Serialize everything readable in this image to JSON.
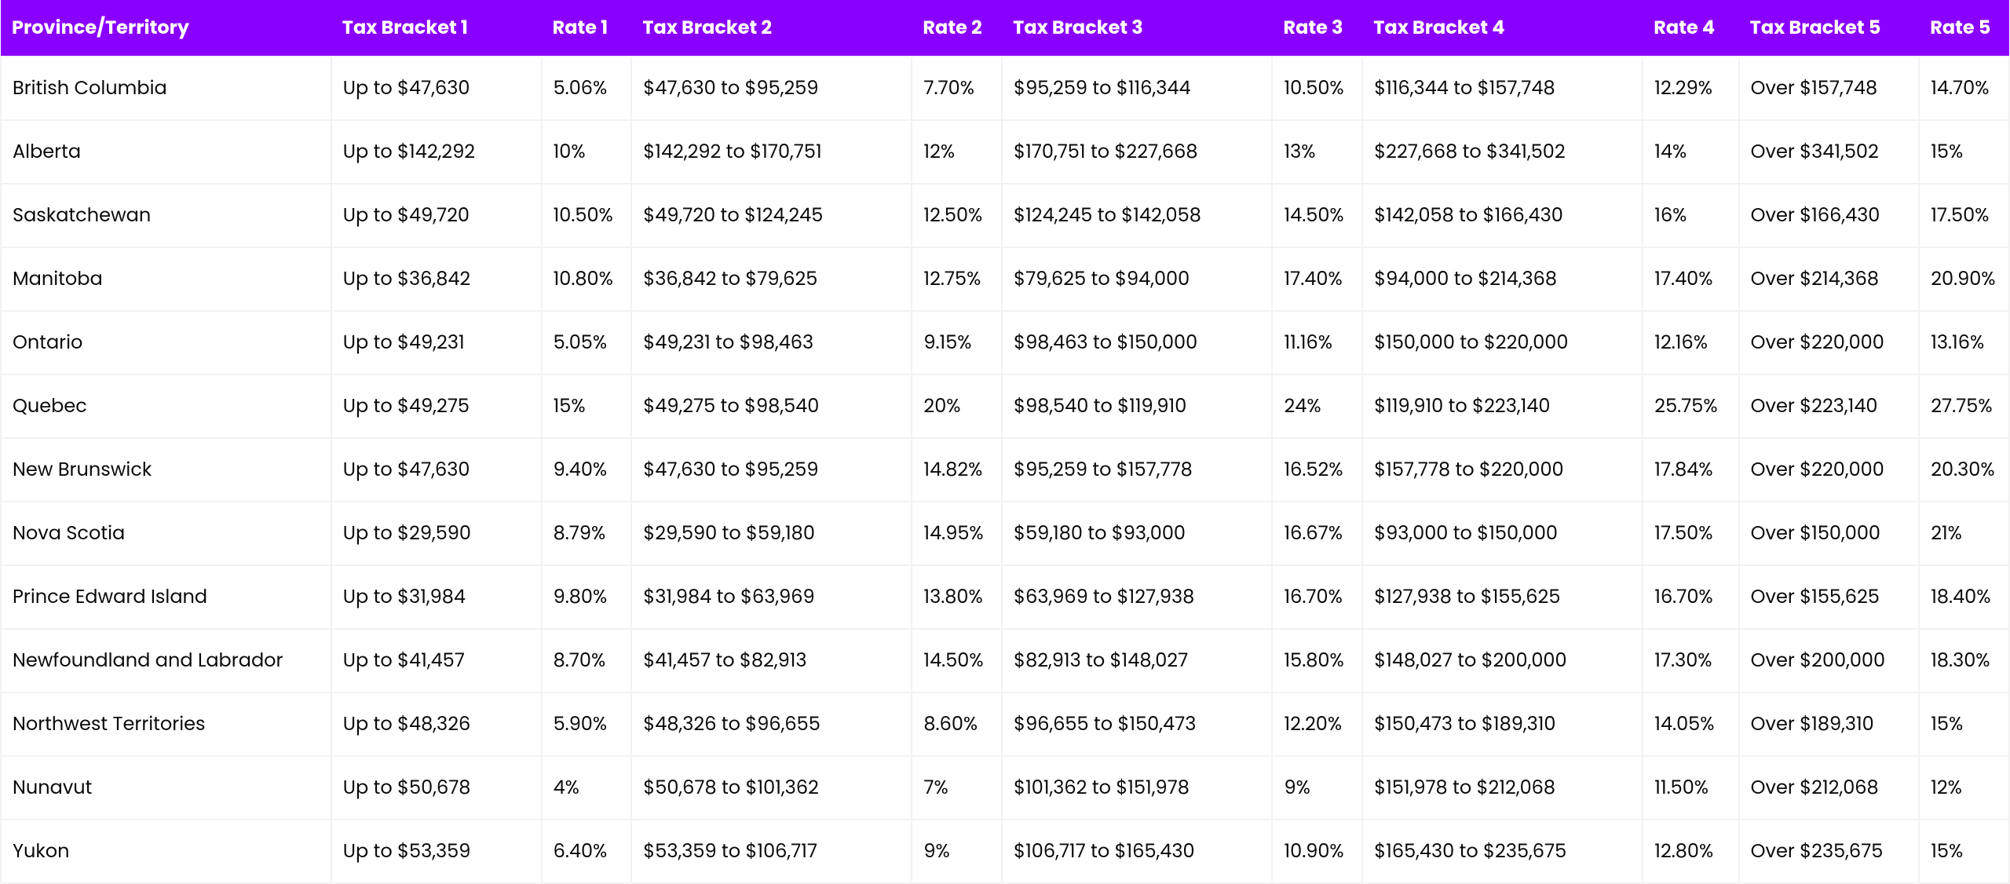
{
  "table": {
    "type": "table",
    "header_bg": "#8a00ff",
    "header_fg": "#ffffff",
    "cell_bg": "#ffffff",
    "cell_fg": "#0a0a0a",
    "border_color": "#f2f2f2",
    "font_family": "Segoe UI, Poppins, Arial, sans-serif",
    "header_fontsize": 24,
    "cell_fontsize": 24,
    "columns": [
      "Province/Territory",
      "Tax  Bracket  1",
      "Rate 1",
      "Tax Bracket 2",
      "Rate 2",
      "Tax Bracket 3",
      "Rate 3",
      "Tax Bracket 4",
      "Rate 4",
      "Tax Bracket 5",
      "Rate 5"
    ],
    "rows": [
      [
        "British Columbia",
        "Up  to  $47,630",
        "5.06%",
        "$47,630 to $95,259",
        "7.70%",
        "$95,259 to $116,344",
        "10.50%",
        "$116,344 to $157,748",
        "12.29%",
        "Over $157,748",
        "14.70%"
      ],
      [
        "Alberta",
        "Up  to  $142,292",
        "10%",
        "$142,292 to $170,751",
        "12%",
        "$170,751 to $227,668",
        "13%",
        "$227,668 to $341,502",
        "14%",
        "Over $341,502",
        "15%"
      ],
      [
        "Saskatchewan",
        "Up  to  $49,720",
        "10.50%",
        "$49,720 to $124,245",
        "12.50%",
        "$124,245 to $142,058",
        "14.50%",
        "$142,058 to $166,430",
        "16%",
        "Over $166,430",
        "17.50%"
      ],
      [
        "Manitoba",
        "Up  to  $36,842",
        "10.80%",
        "$36,842 to $79,625",
        "12.75%",
        "$79,625 to $94,000",
        "17.40%",
        "$94,000 to $214,368",
        "17.40%",
        "Over $214,368",
        "20.90%"
      ],
      [
        "Ontario",
        "Up  to  $49,231",
        "5.05%",
        "$49,231 to $98,463",
        "9.15%",
        "$98,463 to $150,000",
        "11.16%",
        "$150,000 to $220,000",
        "12.16%",
        "Over $220,000",
        "13.16%"
      ],
      [
        "Quebec",
        "Up  to  $49,275",
        "15%",
        "$49,275 to $98,540",
        "20%",
        "$98,540 to $119,910",
        "24%",
        "$119,910 to $223,140",
        "25.75%",
        "Over $223,140",
        "27.75%"
      ],
      [
        "New Brunswick",
        "Up  to  $47,630",
        "9.40%",
        "$47,630 to $95,259",
        "14.82%",
        "$95,259 to $157,778",
        "16.52%",
        "$157,778 to $220,000",
        "17.84%",
        "Over $220,000",
        "20.30%"
      ],
      [
        "Nova Scotia",
        "Up  to  $29,590",
        "8.79%",
        "$29,590 to $59,180",
        "14.95%",
        "$59,180 to $93,000",
        "16.67%",
        "$93,000 to $150,000",
        "17.50%",
        "Over $150,000",
        "21%"
      ],
      [
        "Prince Edward Island",
        "Up  to  $31,984",
        "9.80%",
        "$31,984 to $63,969",
        "13.80%",
        "$63,969 to $127,938",
        "16.70%",
        "$127,938 to $155,625",
        "16.70%",
        "Over $155,625",
        "18.40%"
      ],
      [
        "Newfoundland and Labrador",
        "Up  to  $41,457",
        "8.70%",
        "$41,457 to $82,913",
        "14.50%",
        "$82,913 to $148,027",
        "15.80%",
        "$148,027 to $200,000",
        "17.30%",
        "Over $200,000",
        "18.30%"
      ],
      [
        "Northwest Territories",
        "Up  to  $48,326",
        "5.90%",
        "$48,326 to $96,655",
        "8.60%",
        "$96,655 to $150,473",
        "12.20%",
        "$150,473 to $189,310",
        "14.05%",
        "Over $189,310",
        "15%"
      ],
      [
        "Nunavut",
        "Up  to  $50,678",
        "4%",
        "$50,678 to $101,362",
        "7%",
        "$101,362 to $151,978",
        "9%",
        "$151,978 to $212,068",
        "11.50%",
        "Over $212,068",
        "12%"
      ],
      [
        "Yukon",
        "Up to $53,359",
        "6.40%",
        "$53,359 to $106,717",
        "9%",
        "$106,717 to $165,430",
        "10.90%",
        "$165,430 to $235,675",
        "12.80%",
        "Over $235,675",
        "15%"
      ]
    ]
  }
}
